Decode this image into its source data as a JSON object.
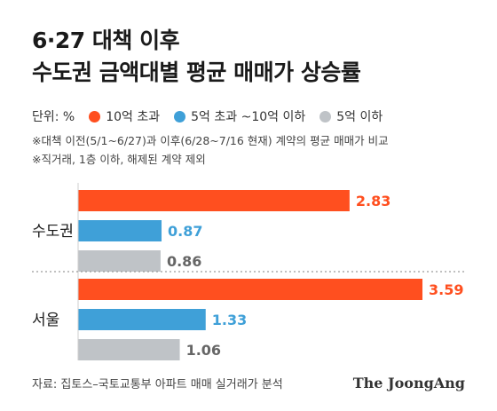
{
  "title_lines": [
    "6·27 대책 이후",
    "수도권 금액대별 평균 매매가 상승률"
  ],
  "unit_label": "단위: %",
  "legend": [
    {
      "name": "10억 초과",
      "color": "#FF4F1F"
    },
    {
      "name": "5억 초과 ~10억 이하",
      "color": "#3FA0D8"
    },
    {
      "name": "5억 이하",
      "color": "#BFC3C7"
    }
  ],
  "notes": [
    "※대책 이전(5/1~6/27)과 이후(6/28~7/16 현재) 계약의 평균 매매가 비교",
    "※직거래, 1층 이하, 해제된 계약 제외"
  ],
  "chart_data": {
    "type": "bar",
    "orientation": "horizontal",
    "categories": [
      "수도권",
      "서울"
    ],
    "series": [
      {
        "name": "10억 초과",
        "values": [
          2.83,
          3.59
        ],
        "color": "#FF4F1F"
      },
      {
        "name": "5억 초과 ~10억 이하",
        "values": [
          0.87,
          1.33
        ],
        "color": "#3FA0D8"
      },
      {
        "name": "5억 이하",
        "values": [
          0.86,
          1.06
        ],
        "color": "#BFC3C7"
      }
    ],
    "xlim": [
      0,
      3.59
    ],
    "grid": false,
    "legend_position": "top-left"
  },
  "source": "자료: 집토스–국토교통부 아파트 매매 실거래가 분석",
  "brand": "The JoongAng"
}
